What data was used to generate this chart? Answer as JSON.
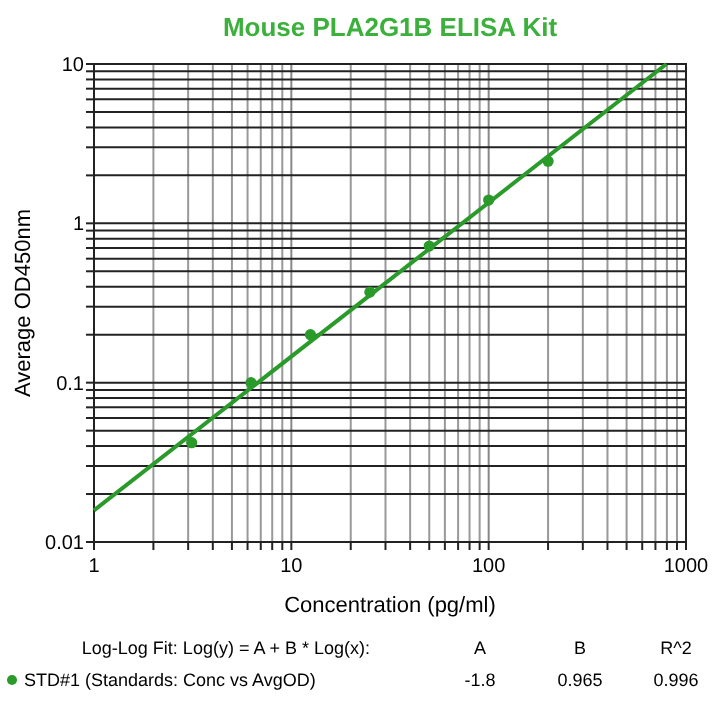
{
  "chart_data": {
    "type": "scatter",
    "title": "Mouse PLA2G1B ELISA Kit",
    "xlabel": "Concentration (pg/ml)",
    "ylabel": "Average OD450nm",
    "log": "xy",
    "grid": true,
    "legend": "bottom",
    "marker": "circle",
    "xlim": [
      1,
      1000
    ],
    "ylim": [
      0.01,
      10
    ],
    "xticks": [
      1,
      {
        "value": 2,
        "label": null
      },
      {
        "value": 3,
        "label": null
      },
      {
        "value": 4,
        "label": null
      },
      {
        "value": 5,
        "label": null
      },
      {
        "value": 6,
        "label": null
      },
      {
        "value": 7,
        "label": null
      },
      {
        "value": 8,
        "label": null
      },
      {
        "value": 9,
        "label": null
      },
      10,
      {
        "value": 20,
        "label": null
      },
      {
        "value": 30,
        "label": null
      },
      {
        "value": 40,
        "label": null
      },
      {
        "value": 50,
        "label": null
      },
      {
        "value": 60,
        "label": null
      },
      {
        "value": 70,
        "label": null
      },
      {
        "value": 80,
        "label": null
      },
      {
        "value": 90,
        "label": null
      },
      100,
      {
        "value": 200,
        "label": null
      },
      {
        "value": 300,
        "label": null
      },
      {
        "value": 400,
        "label": null
      },
      {
        "value": 500,
        "label": null
      },
      {
        "value": 600,
        "label": null
      },
      {
        "value": 700,
        "label": null
      },
      {
        "value": 800,
        "label": null
      },
      {
        "value": 900,
        "label": null
      },
      1000
    ],
    "yticks": [
      0.01,
      {
        "value": 0.02,
        "label": null
      },
      {
        "value": 0.03,
        "label": null
      },
      {
        "value": 0.04,
        "label": null
      },
      {
        "value": 0.05,
        "label": null
      },
      {
        "value": 0.06,
        "label": null
      },
      {
        "value": 0.07,
        "label": null
      },
      {
        "value": 0.08,
        "label": null
      },
      {
        "value": 0.09,
        "label": null
      },
      0.1,
      {
        "value": 0.2,
        "label": null
      },
      {
        "value": 0.3,
        "label": null
      },
      {
        "value": 0.4,
        "label": null
      },
      {
        "value": 0.5,
        "label": null
      },
      {
        "value": 0.6,
        "label": null
      },
      {
        "value": 0.7,
        "label": null
      },
      {
        "value": 0.8,
        "label": null
      },
      {
        "value": 0.9,
        "label": null
      },
      1,
      {
        "value": 2,
        "label": null
      },
      {
        "value": 3,
        "label": null
      },
      {
        "value": 4,
        "label": null
      },
      {
        "value": 5,
        "label": null
      },
      {
        "value": 6,
        "label": null
      },
      {
        "value": 7,
        "label": null
      },
      {
        "value": 8,
        "label": null
      },
      {
        "value": 9,
        "label": null
      },
      10
    ],
    "series": [
      {
        "name": "STD#1 (Standards: Conc vs AvgOD)",
        "color": "#2a9a2a",
        "x": [
          3.125,
          6.25,
          12.5,
          25,
          50,
          100,
          200
        ],
        "values": [
          0.042,
          0.1,
          0.2,
          0.37,
          0.72,
          1.4,
          2.45
        ]
      },
      {
        "type": "line",
        "marker": "none",
        "color": "#2a9a2a",
        "x": [
          1,
          796
        ],
        "values": [
          0.0158,
          10
        ]
      }
    ],
    "annotations": [
      "Log-Log Fit: Log(y) = A + B * Log(x):",
      "A",
      "B",
      "R^2",
      "-1.8",
      "0.965",
      "0.996"
    ]
  }
}
